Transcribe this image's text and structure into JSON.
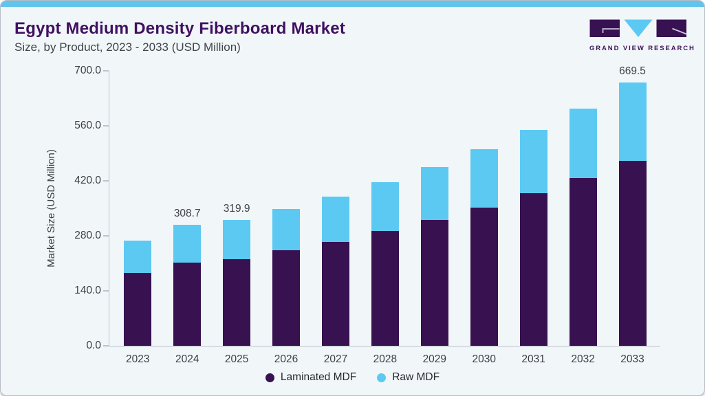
{
  "header": {
    "title": "Egypt Medium Density Fiberboard Market",
    "subtitle": "Size, by Product, 2023 - 2033 (USD Million)"
  },
  "logo": {
    "text": "GRAND VIEW RESEARCH",
    "icon": "gvr-logo-icon"
  },
  "colors": {
    "laminated_mdf": "#371150",
    "raw_mdf": "#5cc9f2",
    "top_strip": "#61c4ea",
    "title_purple": "#401160",
    "card_background": "#f1f6f9",
    "axis_gray": "#bcc3ca",
    "tick_text": "#3d4145"
  },
  "chart_data": {
    "type": "bar",
    "stacked": true,
    "title": "Egypt Medium Density Fiberboard Market",
    "subtitle": "Size, by Product, 2023 - 2033 (USD Million)",
    "categories": [
      "2023",
      "2024",
      "2025",
      "2026",
      "2027",
      "2028",
      "2029",
      "2030",
      "2031",
      "2032",
      "2033"
    ],
    "series": [
      {
        "name": "Laminated MDF",
        "color": "#371150",
        "values": [
          185.5,
          212.3,
          221.0,
          242.7,
          264.8,
          291.7,
          320.3,
          352.3,
          388.5,
          427.5,
          471.3
        ]
      },
      {
        "name": "Raw MDF",
        "color": "#5cc9f2",
        "values": [
          82.3,
          96.4,
          98.9,
          105.0,
          115.0,
          125.3,
          135.2,
          148.2,
          160.5,
          175.7,
          198.2
        ]
      }
    ],
    "totals": [
      267.8,
      308.7,
      319.9,
      347.7,
      379.8,
      417.0,
      455.5,
      500.5,
      549.0,
      603.2,
      669.5
    ],
    "data_labels": [
      "",
      "308.7",
      "319.9",
      "",
      "",
      "",
      "",
      "",
      "",
      "",
      "669.5"
    ],
    "xlabel": "",
    "ylabel": "Market Size (USD Million)",
    "ylim": [
      0,
      700
    ],
    "ytick_labels": [
      "0.0",
      "140.0",
      "280.0",
      "420.0",
      "560.0",
      "700.0"
    ],
    "grid": false,
    "legend_position": "bottom"
  }
}
